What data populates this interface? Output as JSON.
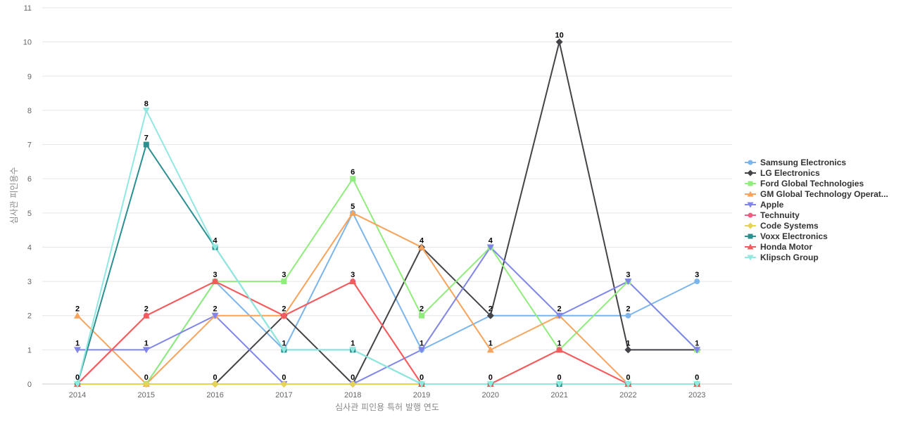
{
  "chart_data": {
    "type": "line",
    "xlabel": "심사관 피인용 특허 발행 연도",
    "ylabel": "심사관 피인용수",
    "ylim": [
      0,
      11
    ],
    "yticks": [
      0,
      1,
      2,
      3,
      4,
      5,
      6,
      7,
      8,
      9,
      10,
      11
    ],
    "categories": [
      "2014",
      "2015",
      "2016",
      "2017",
      "2018",
      "2019",
      "2020",
      "2021",
      "2022",
      "2023"
    ],
    "grid": true,
    "legend_position": "right",
    "series": [
      {
        "name": "Samsung Electronics",
        "color": "#7cb5ec",
        "marker": "circle",
        "values": [
          0,
          0,
          3,
          1,
          5,
          1,
          2,
          2,
          2,
          3
        ]
      },
      {
        "name": "LG Electronics",
        "color": "#434348",
        "marker": "diamond",
        "values": [
          0,
          0,
          0,
          2,
          0,
          4,
          2,
          10,
          1,
          1
        ]
      },
      {
        "name": "Ford Global Technologies",
        "color": "#90ed7d",
        "marker": "square",
        "values": [
          0,
          0,
          3,
          3,
          6,
          2,
          4,
          1,
          3,
          1
        ]
      },
      {
        "name": "GM Global Technology Operat...",
        "color": "#f7a35c",
        "marker": "triangle",
        "values": [
          2,
          0,
          2,
          2,
          5,
          4,
          1,
          2,
          0,
          0
        ]
      },
      {
        "name": "Apple",
        "color": "#8085e9",
        "marker": "triangle-down",
        "values": [
          1,
          1,
          2,
          0,
          0,
          1,
          4,
          2,
          3,
          1
        ]
      },
      {
        "name": "Technuity",
        "color": "#f15c80",
        "marker": "circle",
        "values": [
          0,
          2,
          3,
          2,
          3,
          0,
          0,
          1,
          0,
          0
        ]
      },
      {
        "name": "Code Systems",
        "color": "#e4d354",
        "marker": "diamond",
        "values": [
          0,
          0,
          0,
          0,
          0,
          0,
          0,
          0,
          0,
          0
        ]
      },
      {
        "name": "Voxx Electronics",
        "color": "#2b908f",
        "marker": "square",
        "values": [
          0,
          7,
          4,
          1,
          1,
          0,
          0,
          0,
          0,
          0
        ]
      },
      {
        "name": "Honda Motor",
        "color": "#f45b5b",
        "marker": "triangle",
        "values": [
          0,
          2,
          3,
          2,
          3,
          0,
          0,
          1,
          0,
          0
        ]
      },
      {
        "name": "Klipsch Group",
        "color": "#91e8e1",
        "marker": "triangle-down",
        "values": [
          0,
          8,
          4,
          1,
          1,
          0,
          0,
          0,
          0,
          0
        ]
      }
    ],
    "data_labels": [
      {
        "x": "2014",
        "values": [
          2,
          1,
          0
        ]
      },
      {
        "x": "2015",
        "values": [
          8,
          7,
          2,
          1,
          0
        ]
      },
      {
        "x": "2016",
        "values": [
          4,
          3,
          2,
          0
        ]
      },
      {
        "x": "2017",
        "values": [
          3,
          2,
          1,
          0
        ]
      },
      {
        "x": "2018",
        "values": [
          6,
          5,
          3,
          1,
          0
        ]
      },
      {
        "x": "2019",
        "values": [
          4,
          2,
          1,
          0
        ]
      },
      {
        "x": "2020",
        "values": [
          4,
          2,
          1,
          0
        ]
      },
      {
        "x": "2021",
        "values": [
          10,
          2,
          1,
          0
        ]
      },
      {
        "x": "2022",
        "values": [
          3,
          2,
          1,
          0
        ]
      },
      {
        "x": "2023",
        "values": [
          3,
          1,
          0
        ]
      }
    ]
  }
}
